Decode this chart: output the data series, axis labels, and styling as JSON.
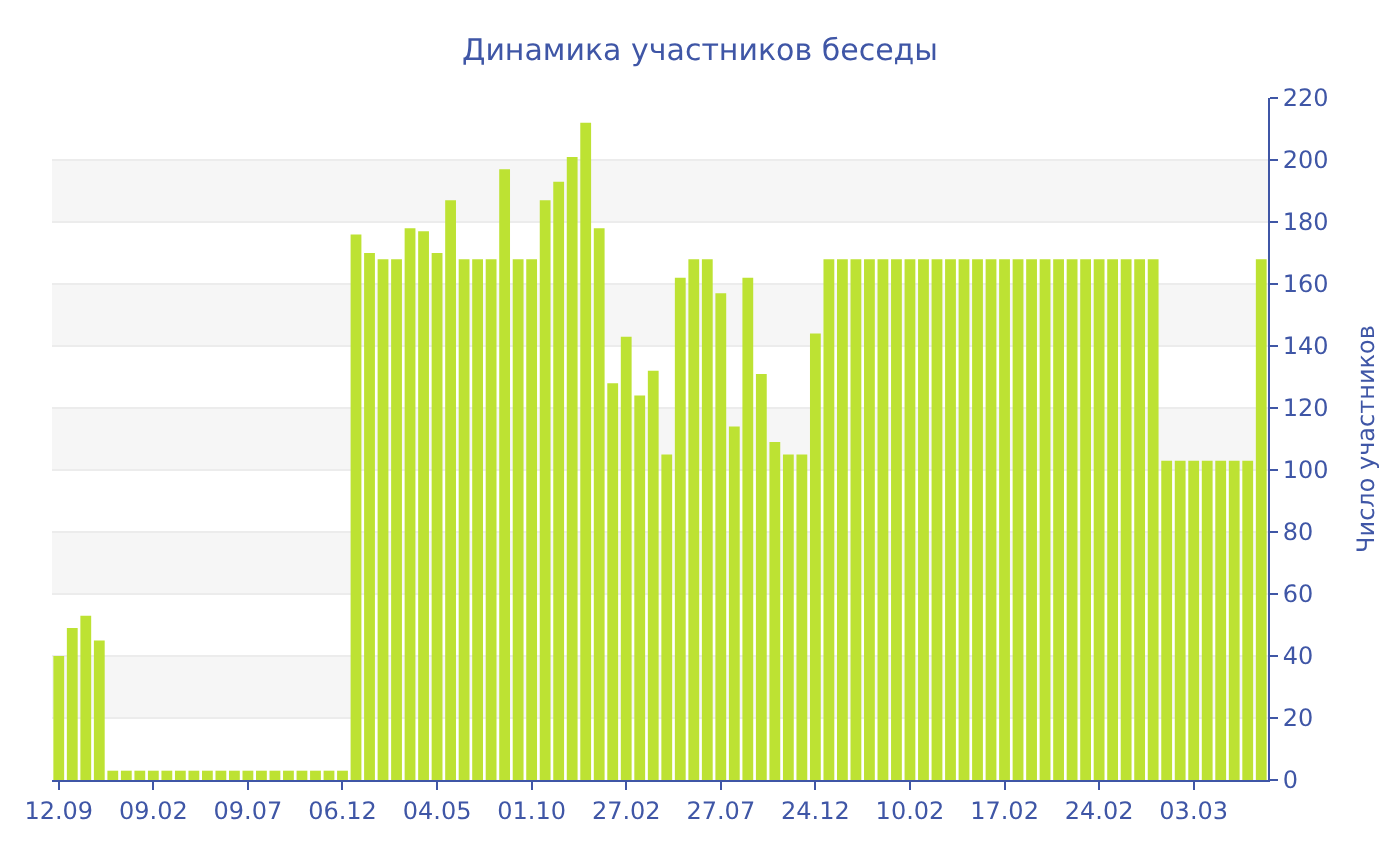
{
  "chart_data": {
    "type": "bar",
    "title": "Динамика участников беседы",
    "ylabel": "Число участников",
    "categories": [
      "12.09",
      null,
      null,
      null,
      null,
      null,
      null,
      "09.02",
      null,
      null,
      null,
      null,
      null,
      null,
      "09.07",
      null,
      null,
      null,
      null,
      null,
      null,
      "06.12",
      null,
      null,
      null,
      null,
      null,
      null,
      "04.05",
      null,
      null,
      null,
      null,
      null,
      null,
      "01.10",
      null,
      null,
      null,
      null,
      null,
      null,
      "27.02",
      null,
      null,
      null,
      null,
      null,
      null,
      "27.07",
      null,
      null,
      null,
      null,
      null,
      null,
      "24.12",
      null,
      null,
      null,
      null,
      null,
      null,
      "10.02",
      null,
      null,
      null,
      null,
      null,
      null,
      "17.02",
      null,
      null,
      null,
      null,
      null,
      null,
      "24.02",
      null,
      null,
      null,
      null,
      null,
      null,
      "03.03",
      null,
      null,
      null,
      null,
      null
    ],
    "values": [
      40,
      49,
      53,
      45,
      3,
      3,
      3,
      3,
      3,
      3,
      3,
      3,
      3,
      3,
      3,
      3,
      3,
      3,
      3,
      3,
      3,
      3,
      176,
      170,
      168,
      168,
      178,
      177,
      170,
      187,
      168,
      168,
      168,
      197,
      168,
      168,
      187,
      193,
      201,
      212,
      178,
      128,
      143,
      124,
      132,
      105,
      162,
      168,
      168,
      157,
      114,
      162,
      131,
      109,
      105,
      105,
      144,
      168,
      168,
      168,
      168,
      168,
      168,
      168,
      168,
      168,
      168,
      168,
      168,
      168,
      168,
      168,
      168,
      168,
      168,
      168,
      168,
      168,
      168,
      168,
      168,
      168,
      103,
      103,
      103,
      103,
      103,
      103,
      103,
      168
    ],
    "color": "#bde233",
    "ylim": [
      0,
      220
    ],
    "yticks": [
      0,
      20,
      40,
      60,
      80,
      100,
      120,
      140,
      160,
      180,
      200,
      220
    ],
    "grid": "y",
    "legend": false
  }
}
